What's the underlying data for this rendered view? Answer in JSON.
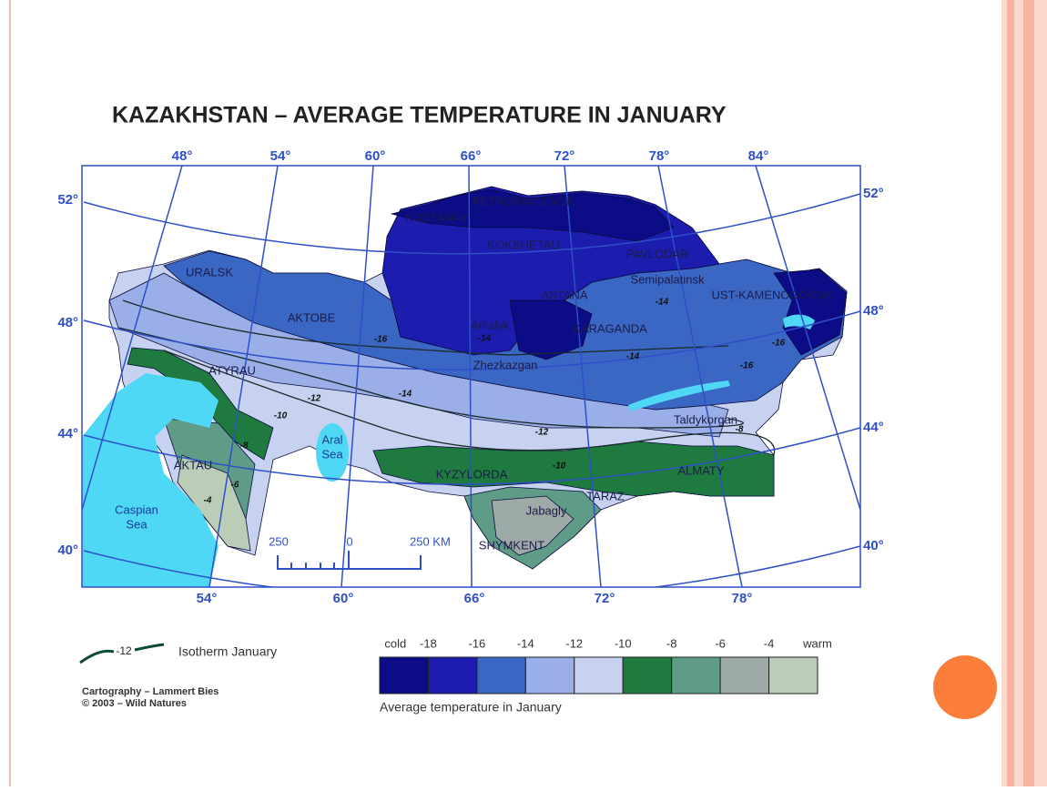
{
  "title": "KAZAKHSTAN  –  AVERAGE TEMPERATURE IN JANUARY",
  "map": {
    "graticule_labels": {
      "top": [
        "48°",
        "54°",
        "60°",
        "66°",
        "72°",
        "78°",
        "84°"
      ],
      "bottom": [
        "54°",
        "60°",
        "66°",
        "72°",
        "78°"
      ],
      "left": [
        "52°",
        "48°",
        "44°",
        "40°"
      ],
      "right": [
        "52°",
        "48°",
        "44°",
        "40°"
      ]
    },
    "places": [
      "PETROPAVLOVSK",
      "KOSTANAY",
      "KOKSHETAU",
      "PAVLODAR",
      "Semipalatinsk",
      "URALSK",
      "AKTOBE",
      "ASTANA",
      "UST-KAMENOGORSK",
      "Arkalyk",
      "KARAGANDA",
      "ATYRAU",
      "Zhezkazgan",
      "Taldykorgan",
      "AKTAU",
      "KYZYLORDA",
      "ALMATY",
      "TARAZ",
      "Jabagly",
      "SHYMKENT"
    ],
    "water_labels": [
      [
        "Caspian",
        "Sea"
      ],
      [
        "Aral",
        "Sea"
      ]
    ],
    "isotherm_labels": [
      -16,
      -14,
      -14,
      -14,
      -12,
      -14,
      -10,
      -12,
      -8,
      -10,
      -6,
      -4,
      -16,
      -16,
      -8
    ],
    "scale_bar": [
      250,
      0,
      "250 KM"
    ]
  },
  "legend": {
    "isotherm_sample": -12,
    "isotherm_text": "Isotherm January",
    "color_scale": {
      "ends": [
        "cold",
        "warm"
      ],
      "ticks": [
        -18,
        -16,
        -14,
        -12,
        -10,
        -8,
        -6,
        -4
      ],
      "colors": [
        "#0c0c86",
        "#1c1cae",
        "#3a66c4",
        "#9aaee8",
        "#c6d2f0",
        "#1f7a40",
        "#5f9c88",
        "#9eaaa8",
        "#bacdb6"
      ],
      "caption": "Average temperature in January"
    }
  },
  "credits": [
    "Cartography – Lammert Bies",
    "© 2003 – Wild Natures"
  ]
}
